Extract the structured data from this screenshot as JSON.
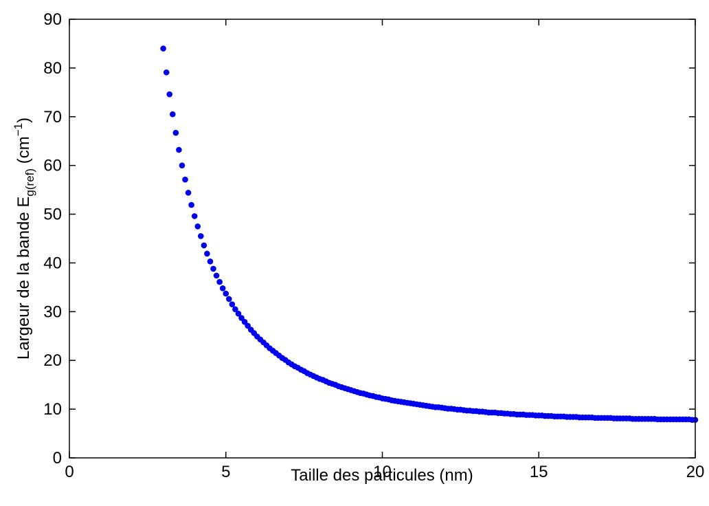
{
  "chart_data": {
    "type": "scatter",
    "xlabel": "Taille des particules (nm)",
    "ylabel": {
      "main": "Largeur de la bande E",
      "subscript": "g(ref)",
      "unit_open": " (cm",
      "superscript": "−1",
      "unit_close": ")"
    },
    "xlim": [
      0,
      20
    ],
    "ylim": [
      0,
      90
    ],
    "xticks": [
      0,
      5,
      10,
      15,
      20
    ],
    "yticks": [
      0,
      10,
      20,
      30,
      40,
      50,
      60,
      70,
      80,
      90
    ],
    "grid": false,
    "legend": "none",
    "marker_color": "#0000ee",
    "series": [
      {
        "x_start": 3.0,
        "x_end": 20.0,
        "x_step": 0.1,
        "x": [
          3.0,
          3.1,
          3.2,
          3.3,
          3.4,
          3.5,
          3.6,
          3.7,
          3.8,
          3.9,
          4.0,
          4.1,
          4.2,
          4.3,
          4.4,
          4.5,
          4.6,
          4.7,
          4.8,
          4.9,
          5.0,
          5.1,
          5.2,
          5.3,
          5.4,
          5.5,
          5.6,
          5.7,
          5.8,
          5.9,
          6.0,
          6.1,
          6.2,
          6.3,
          6.4,
          6.5,
          6.6,
          6.7,
          6.8,
          6.9,
          7.0,
          7.1,
          7.2,
          7.3,
          7.4,
          7.5,
          7.6,
          7.7,
          7.8,
          7.9,
          8.0,
          8.1,
          8.2,
          8.3,
          8.4,
          8.5,
          8.6,
          8.7,
          8.8,
          8.9,
          9.0,
          9.1,
          9.2,
          9.3,
          9.4,
          9.5,
          9.6,
          9.7,
          9.8,
          9.9,
          10.0,
          10.1,
          10.2,
          10.3,
          10.4,
          10.5,
          10.6,
          10.7,
          10.8,
          10.9,
          11.0,
          11.1,
          11.2,
          11.3,
          11.4,
          11.5,
          11.6,
          11.7,
          11.8,
          11.9,
          12.0,
          12.1,
          12.2,
          12.3,
          12.4,
          12.5,
          12.6,
          12.7,
          12.8,
          12.9,
          13.0,
          13.1,
          13.2,
          13.3,
          13.4,
          13.5,
          13.6,
          13.7,
          13.8,
          13.9,
          14.0,
          14.1,
          14.2,
          14.3,
          14.4,
          14.5,
          14.6,
          14.7,
          14.8,
          14.9,
          15.0,
          15.1,
          15.2,
          15.3,
          15.4,
          15.5,
          15.6,
          15.7,
          15.8,
          15.9,
          16.0,
          16.1,
          16.2,
          16.3,
          16.4,
          16.5,
          16.6,
          16.7,
          16.8,
          16.9,
          17.0,
          17.1,
          17.2,
          17.3,
          17.4,
          17.5,
          17.6,
          17.7,
          17.8,
          17.9,
          18.0,
          18.1,
          18.2,
          18.3,
          18.4,
          18.5,
          18.6,
          18.7,
          18.8,
          18.9,
          19.0,
          19.1,
          19.2,
          19.3,
          19.4,
          19.5,
          19.6,
          19.7,
          19.8,
          19.9,
          20.0
        ],
        "y": [
          84.0,
          79.1,
          74.6,
          70.5,
          66.7,
          63.2,
          60.0,
          57.1,
          54.4,
          51.9,
          49.6,
          47.5,
          45.5,
          43.6,
          41.9,
          40.3,
          38.8,
          37.4,
          36.1,
          34.8,
          33.7,
          32.6,
          31.5,
          30.5,
          29.6,
          28.7,
          27.9,
          27.1,
          26.3,
          25.6,
          24.9,
          24.3,
          23.7,
          23.1,
          22.5,
          22.0,
          21.5,
          21.0,
          20.5,
          20.1,
          19.6,
          19.2,
          18.8,
          18.5,
          18.1,
          17.8,
          17.4,
          17.1,
          16.8,
          16.5,
          16.2,
          16.0,
          15.7,
          15.4,
          15.2,
          15.0,
          14.7,
          14.5,
          14.3,
          14.1,
          13.9,
          13.7,
          13.5,
          13.3,
          13.2,
          13.0,
          12.8,
          12.7,
          12.5,
          12.4,
          12.2,
          12.1,
          12.0,
          11.8,
          11.7,
          11.6,
          11.5,
          11.4,
          11.3,
          11.2,
          11.1,
          11.0,
          10.9,
          10.8,
          10.7,
          10.6,
          10.5,
          10.4,
          10.4,
          10.3,
          10.2,
          10.1,
          10.1,
          10.0,
          9.9,
          9.9,
          9.8,
          9.7,
          9.7,
          9.6,
          9.6,
          9.5,
          9.5,
          9.4,
          9.3,
          9.3,
          9.3,
          9.2,
          9.2,
          9.1,
          9.1,
          9.0,
          9.0,
          8.9,
          8.9,
          8.9,
          8.8,
          8.8,
          8.8,
          8.7,
          8.7,
          8.7,
          8.6,
          8.6,
          8.6,
          8.5,
          8.5,
          8.5,
          8.5,
          8.4,
          8.4,
          8.4,
          8.4,
          8.3,
          8.3,
          8.3,
          8.3,
          8.3,
          8.2,
          8.2,
          8.2,
          8.2,
          8.2,
          8.2,
          8.1,
          8.1,
          8.1,
          8.1,
          8.1,
          8.1,
          8.0,
          8.0,
          8.0,
          8.0,
          8.0,
          8.0,
          8.0,
          8.0,
          7.9,
          7.9,
          7.9,
          7.9,
          7.9,
          7.9,
          7.9,
          7.9,
          7.9,
          7.9,
          7.9,
          7.8,
          7.8
        ]
      }
    ]
  }
}
